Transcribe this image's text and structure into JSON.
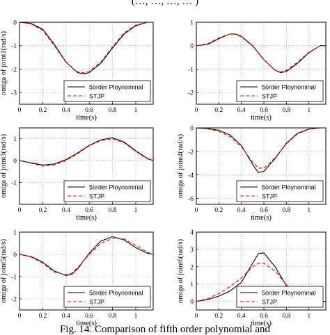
{
  "figure": {
    "header_fragment": "(…, …, …, … )",
    "caption": "Fig. 14. Comparison of fifth order polynomial and"
  },
  "style": {
    "poly_color": "#000000",
    "stjp_color": "#ff0000",
    "grid": "dotted",
    "legend_placement": "bottom-right"
  },
  "chart_data": [
    {
      "type": "line",
      "ylabel": "omiga of joint1(rad/s)",
      "xlabel": "time(s)",
      "xlim": [
        0,
        1.15
      ],
      "ylim": [
        -3.5,
        0
      ],
      "xticks": [
        0,
        0.2,
        0.4,
        0.6,
        0.8,
        1
      ],
      "yticks": [
        0,
        -1,
        -2,
        -3
      ],
      "x": [
        0,
        0.1,
        0.2,
        0.3,
        0.4,
        0.5,
        0.55,
        0.6,
        0.7,
        0.8,
        0.9,
        1.0,
        1.1,
        1.15
      ],
      "series": [
        {
          "name": "5order Ploynominal",
          "style": "solid",
          "values": [
            0,
            -0.05,
            -0.3,
            -0.95,
            -1.7,
            -2.15,
            -2.2,
            -2.15,
            -1.75,
            -1.1,
            -0.5,
            -0.15,
            0,
            0
          ]
        },
        {
          "name": "STJP",
          "style": "dashed",
          "values": [
            0,
            -0.07,
            -0.35,
            -1.0,
            -1.72,
            -2.12,
            -2.15,
            -2.1,
            -1.7,
            -1.05,
            -0.45,
            -0.12,
            0,
            0
          ]
        }
      ]
    },
    {
      "type": "line",
      "ylabel": "",
      "xlabel": "time(s)",
      "xlim": [
        0,
        1.15
      ],
      "ylim": [
        -2.5,
        1
      ],
      "xticks": [
        0,
        0.2,
        0.4,
        0.6,
        0.8,
        1
      ],
      "yticks": [
        1,
        0,
        -1,
        -2
      ],
      "x": [
        0,
        0.1,
        0.2,
        0.3,
        0.35,
        0.4,
        0.5,
        0.6,
        0.7,
        0.75,
        0.8,
        0.9,
        1.0,
        1.1,
        1.15
      ],
      "series": [
        {
          "name": "5order Ploynominal",
          "style": "solid",
          "values": [
            0,
            0.05,
            0.3,
            0.5,
            0.5,
            0.4,
            0.0,
            -0.6,
            -1.05,
            -1.15,
            -1.1,
            -0.75,
            -0.3,
            0,
            0
          ]
        },
        {
          "name": "STJP",
          "style": "dashed",
          "values": [
            0,
            0.08,
            0.33,
            0.5,
            0.48,
            0.38,
            -0.02,
            -0.6,
            -1.05,
            -1.12,
            -1.05,
            -0.7,
            -0.28,
            0,
            0
          ]
        }
      ]
    },
    {
      "type": "line",
      "ylabel": "omiga of joint3(rad/s)",
      "xlabel": "time(s)",
      "xlim": [
        0,
        1.15
      ],
      "ylim": [
        -2,
        1.5
      ],
      "xticks": [
        0,
        0.2,
        0.4,
        0.6,
        0.8,
        1
      ],
      "yticks": [
        1,
        0,
        -1
      ],
      "x": [
        0,
        0.1,
        0.2,
        0.3,
        0.4,
        0.5,
        0.6,
        0.7,
        0.8,
        0.9,
        1.0,
        1.1,
        1.15
      ],
      "series": [
        {
          "name": "5order Ploynominal",
          "style": "solid",
          "values": [
            0,
            -0.1,
            -0.2,
            -0.15,
            0.05,
            0.35,
            0.7,
            0.95,
            1.05,
            0.85,
            0.45,
            0.1,
            0
          ]
        },
        {
          "name": "STJP",
          "style": "dashed",
          "values": [
            0,
            -0.12,
            -0.25,
            -0.2,
            0.0,
            0.32,
            0.68,
            0.92,
            1.0,
            0.82,
            0.42,
            0.08,
            0
          ]
        }
      ]
    },
    {
      "type": "line",
      "ylabel": "omiga of joint4(rad/s)",
      "xlabel": "time(s)",
      "xlim": [
        0,
        1.15
      ],
      "ylim": [
        -6.5,
        0
      ],
      "xticks": [
        0,
        0.2,
        0.4,
        0.6,
        0.8,
        1
      ],
      "yticks": [
        0,
        -2,
        -4,
        -6
      ],
      "x": [
        0,
        0.1,
        0.2,
        0.3,
        0.4,
        0.5,
        0.55,
        0.6,
        0.7,
        0.8,
        0.9,
        1.0,
        1.1,
        1.15
      ],
      "series": [
        {
          "name": "5order Ploynominal",
          "style": "solid",
          "values": [
            0,
            -0.05,
            -0.2,
            -0.6,
            -1.5,
            -3.1,
            -3.8,
            -3.7,
            -2.6,
            -1.3,
            -0.45,
            -0.1,
            0,
            0
          ]
        },
        {
          "name": "STJP",
          "style": "dashed",
          "values": [
            0,
            -0.08,
            -0.3,
            -0.75,
            -1.6,
            -2.9,
            -3.4,
            -3.45,
            -2.55,
            -1.35,
            -0.5,
            -0.12,
            0,
            0
          ]
        }
      ]
    },
    {
      "type": "line",
      "ylabel": "omiga of joint5(rad/s)",
      "xlabel": "time(s)",
      "xlim": [
        0,
        1.15
      ],
      "ylim": [
        -2.5,
        1
      ],
      "xticks": [
        0,
        0.2,
        0.4,
        0.6,
        0.8,
        1
      ],
      "yticks": [
        1,
        0,
        -1,
        -2
      ],
      "x": [
        0,
        0.1,
        0.2,
        0.3,
        0.4,
        0.45,
        0.5,
        0.6,
        0.7,
        0.8,
        0.9,
        1.0,
        1.1,
        1.15
      ],
      "series": [
        {
          "name": "5order Ploynominal",
          "style": "solid",
          "values": [
            0,
            -0.1,
            -0.35,
            -0.75,
            -0.95,
            -0.9,
            -0.65,
            0.05,
            0.6,
            0.8,
            0.65,
            0.3,
            0.05,
            0
          ]
        },
        {
          "name": "STJP",
          "style": "dashed",
          "values": [
            0,
            -0.12,
            -0.4,
            -0.8,
            -0.92,
            -0.85,
            -0.6,
            0.0,
            0.5,
            0.72,
            0.7,
            0.4,
            0.1,
            0
          ]
        }
      ]
    },
    {
      "type": "line",
      "ylabel": "omiga of joint6(rad/s)",
      "xlabel": "time(s)",
      "xlim": [
        0,
        1.15
      ],
      "ylim": [
        -0.5,
        4
      ],
      "xticks": [
        0,
        0.2,
        0.4,
        0.6,
        0.8,
        1
      ],
      "yticks": [
        4,
        3,
        2,
        1,
        0
      ],
      "x": [
        0,
        0.1,
        0.2,
        0.3,
        0.4,
        0.5,
        0.55,
        0.6,
        0.7,
        0.8,
        0.9,
        1.0,
        1.1,
        1.15
      ],
      "series": [
        {
          "name": "5order Ploynominal",
          "style": "solid",
          "values": [
            0,
            0.1,
            0.3,
            0.6,
            1.1,
            2.2,
            2.75,
            2.8,
            2.0,
            0.9,
            0.3,
            0.05,
            0,
            0
          ]
        },
        {
          "name": "STJP",
          "style": "dashed",
          "values": [
            0,
            0.15,
            0.45,
            0.85,
            1.35,
            2.0,
            2.2,
            2.2,
            1.75,
            0.95,
            0.35,
            0.07,
            0,
            0
          ]
        }
      ]
    }
  ]
}
